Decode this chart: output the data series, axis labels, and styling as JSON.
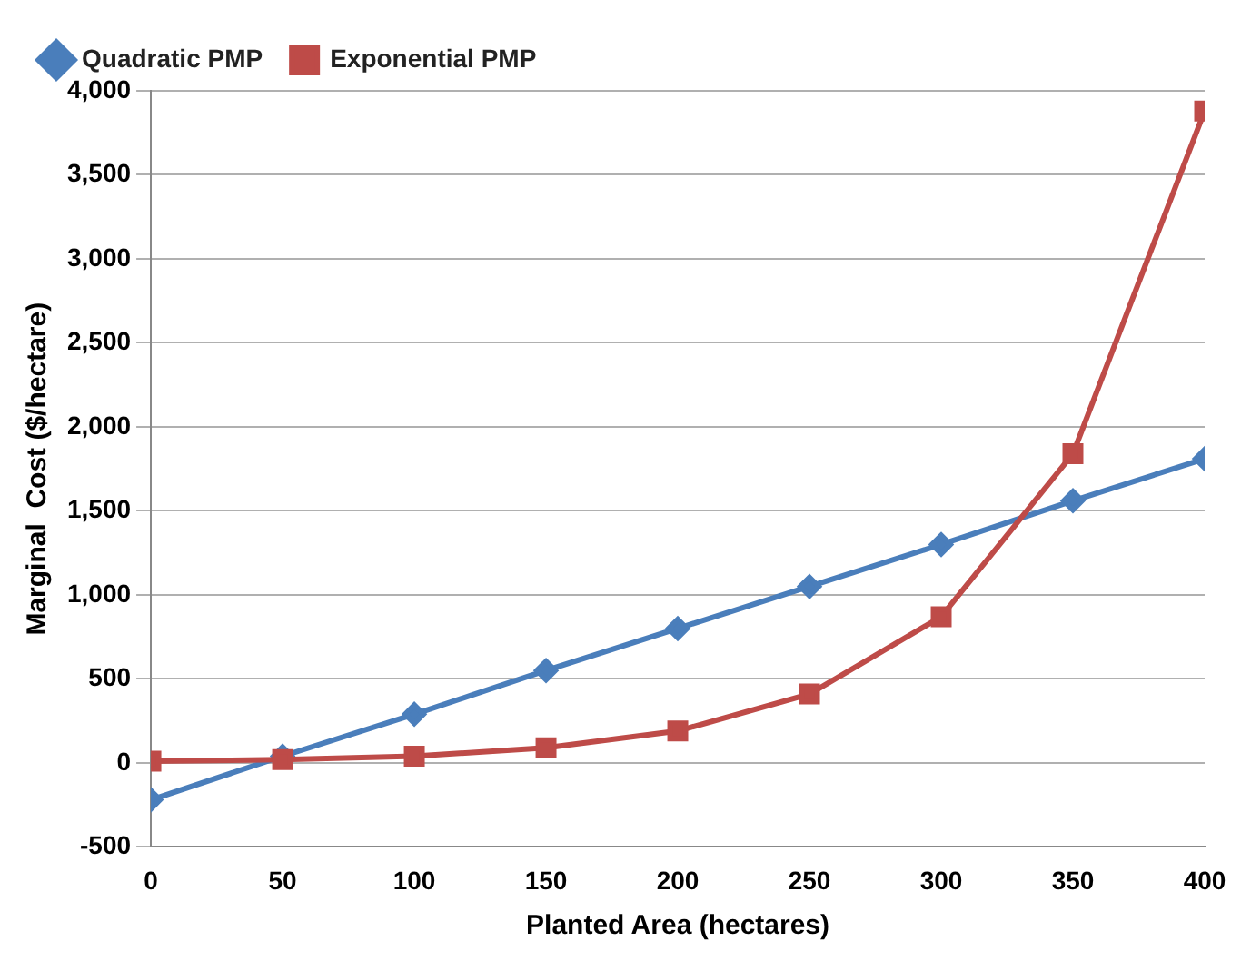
{
  "chart_data": {
    "type": "line",
    "xlabel": "Planted Area (hectares)",
    "ylabel": "Marginal  Cost ($/hectare)",
    "x": [
      0,
      50,
      100,
      150,
      200,
      250,
      300,
      350,
      400
    ],
    "series": [
      {
        "name": "Quadratic PMP",
        "color": "#4a7ebb",
        "marker": "diamond",
        "values": [
          -220,
          40,
          290,
          550,
          800,
          1050,
          1300,
          1560,
          1810
        ]
      },
      {
        "name": "Exponential PMP",
        "color": "#be4b48",
        "marker": "square",
        "values": [
          10,
          20,
          40,
          90,
          190,
          410,
          870,
          1840,
          3880
        ]
      }
    ],
    "xlim": [
      0,
      400
    ],
    "xticks": [
      0,
      50,
      100,
      150,
      200,
      250,
      300,
      350,
      400
    ],
    "ylim": [
      -500,
      4000
    ],
    "yticks": [
      -500,
      0,
      500,
      {
        "value": 1000,
        "label": "1,000"
      },
      {
        "value": 1500,
        "label": "1,500"
      },
      {
        "value": 2000,
        "label": "2,000"
      },
      {
        "value": 2500,
        "label": "2,500"
      },
      {
        "value": 3000,
        "label": "3,000"
      },
      {
        "value": 3500,
        "label": "3,500"
      },
      {
        "value": 4000,
        "label": "4,000"
      }
    ],
    "grid": "y",
    "legend": "top left",
    "line_style": "solid"
  }
}
